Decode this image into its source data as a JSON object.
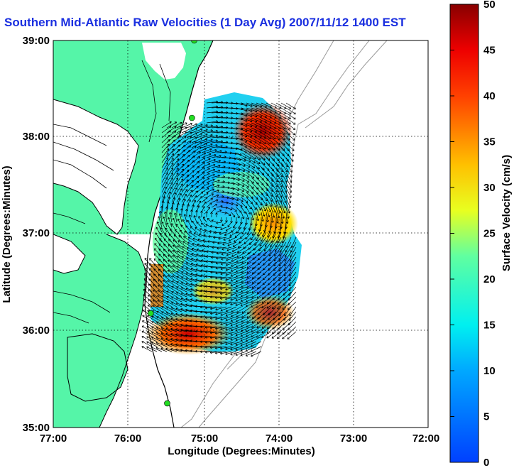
{
  "title": "Southern Mid-Atlantic Raw Velocities (1 Day Avg) 2007/11/12 1400 EST",
  "x_axis": {
    "label": "Longitude (Degrees:Minutes)",
    "ticks": [
      "77:00",
      "76:00",
      "75:00",
      "74:00",
      "73:00",
      "72:00"
    ]
  },
  "y_axis": {
    "label": "Latitude (Degrees:Minutes)",
    "ticks": [
      "39:00",
      "38:00",
      "37:00",
      "36:00",
      "35:00"
    ]
  },
  "colorbar": {
    "label": "Surface Velocity (cm/s)",
    "ticks": [
      "50",
      "45",
      "40",
      "35",
      "30",
      "25",
      "20",
      "15",
      "10",
      "5",
      "0"
    ],
    "range": [
      0,
      50
    ]
  },
  "colors": {
    "land": "#55f5a8",
    "water": "#ffffff",
    "bathymetry": "#9a9a9a",
    "title": "#1a2fe0",
    "station": "#22dd22"
  },
  "stations": [
    {
      "lon": -75.12,
      "lat": 39.0
    },
    {
      "lon": -75.15,
      "lat": 38.2
    },
    {
      "lon": -75.7,
      "lat": 36.18
    },
    {
      "lon": -75.48,
      "lat": 35.25
    }
  ]
}
